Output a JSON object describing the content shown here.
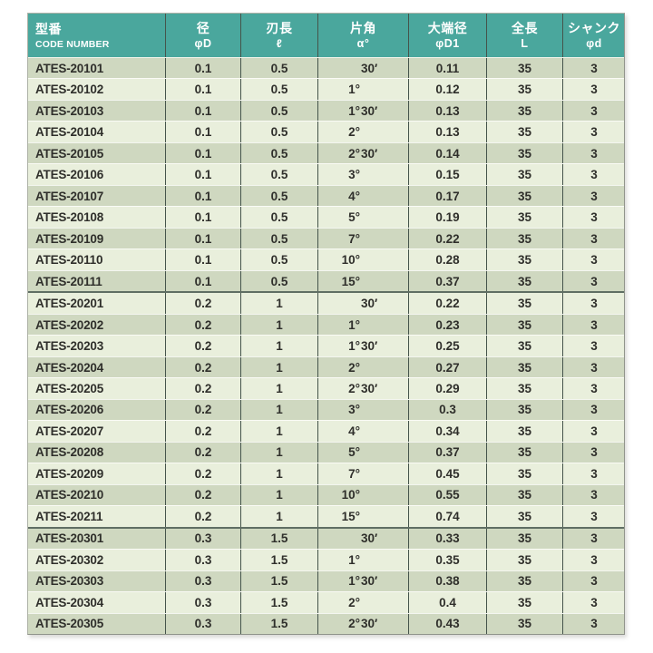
{
  "page": {
    "background": "#ffffff"
  },
  "table": {
    "colors": {
      "header_bg": "#4AA79D",
      "header_text": "#FFFFFF",
      "row_dark": "#CFD8C0",
      "row_light": "#E9EFDC",
      "text": "#2F2F2B",
      "column_rule": "#45544B",
      "group_rule": "#5F6E63"
    },
    "columns": [
      {
        "id": "code",
        "title": "型番",
        "sub": "CODE NUMBER",
        "sub_style": "en",
        "align": "left"
      },
      {
        "id": "d",
        "title": "径",
        "sub": "φD",
        "sub_style": "sym",
        "align": "center"
      },
      {
        "id": "l",
        "title": "刃長",
        "sub": "ℓ",
        "sub_style": "sym",
        "align": "center"
      },
      {
        "id": "angle",
        "title": "片角",
        "sub": "α°",
        "sub_style": "sym",
        "align": "center"
      },
      {
        "id": "d1",
        "title": "大端径",
        "sub": "φD1",
        "sub_style": "sym",
        "align": "center"
      },
      {
        "id": "len",
        "title": "全長",
        "sub": "L",
        "sub_style": "sym",
        "align": "center"
      },
      {
        "id": "shank",
        "title": "シャンク",
        "sub": "φd",
        "sub_style": "sym",
        "align": "center"
      }
    ],
    "rows": [
      {
        "code": "ATES-20101",
        "d": "0.1",
        "l": "0.5",
        "deg": "",
        "min": "30′",
        "d1": "0.11",
        "len": "35",
        "shank": "3",
        "group_start": false
      },
      {
        "code": "ATES-20102",
        "d": "0.1",
        "l": "0.5",
        "deg": "1°",
        "min": "",
        "d1": "0.12",
        "len": "35",
        "shank": "3",
        "group_start": false
      },
      {
        "code": "ATES-20103",
        "d": "0.1",
        "l": "0.5",
        "deg": "1°",
        "min": "30′",
        "d1": "0.13",
        "len": "35",
        "shank": "3",
        "group_start": false
      },
      {
        "code": "ATES-20104",
        "d": "0.1",
        "l": "0.5",
        "deg": "2°",
        "min": "",
        "d1": "0.13",
        "len": "35",
        "shank": "3",
        "group_start": false
      },
      {
        "code": "ATES-20105",
        "d": "0.1",
        "l": "0.5",
        "deg": "2°",
        "min": "30′",
        "d1": "0.14",
        "len": "35",
        "shank": "3",
        "group_start": false
      },
      {
        "code": "ATES-20106",
        "d": "0.1",
        "l": "0.5",
        "deg": "3°",
        "min": "",
        "d1": "0.15",
        "len": "35",
        "shank": "3",
        "group_start": false
      },
      {
        "code": "ATES-20107",
        "d": "0.1",
        "l": "0.5",
        "deg": "4°",
        "min": "",
        "d1": "0.17",
        "len": "35",
        "shank": "3",
        "group_start": false
      },
      {
        "code": "ATES-20108",
        "d": "0.1",
        "l": "0.5",
        "deg": "5°",
        "min": "",
        "d1": "0.19",
        "len": "35",
        "shank": "3",
        "group_start": false
      },
      {
        "code": "ATES-20109",
        "d": "0.1",
        "l": "0.5",
        "deg": "7°",
        "min": "",
        "d1": "0.22",
        "len": "35",
        "shank": "3",
        "group_start": false
      },
      {
        "code": "ATES-20110",
        "d": "0.1",
        "l": "0.5",
        "deg": "10°",
        "min": "",
        "d1": "0.28",
        "len": "35",
        "shank": "3",
        "group_start": false
      },
      {
        "code": "ATES-20111",
        "d": "0.1",
        "l": "0.5",
        "deg": "15°",
        "min": "",
        "d1": "0.37",
        "len": "35",
        "shank": "3",
        "group_start": false
      },
      {
        "code": "ATES-20201",
        "d": "0.2",
        "l": "1",
        "deg": "",
        "min": "30′",
        "d1": "0.22",
        "len": "35",
        "shank": "3",
        "group_start": true
      },
      {
        "code": "ATES-20202",
        "d": "0.2",
        "l": "1",
        "deg": "1°",
        "min": "",
        "d1": "0.23",
        "len": "35",
        "shank": "3",
        "group_start": false
      },
      {
        "code": "ATES-20203",
        "d": "0.2",
        "l": "1",
        "deg": "1°",
        "min": "30′",
        "d1": "0.25",
        "len": "35",
        "shank": "3",
        "group_start": false
      },
      {
        "code": "ATES-20204",
        "d": "0.2",
        "l": "1",
        "deg": "2°",
        "min": "",
        "d1": "0.27",
        "len": "35",
        "shank": "3",
        "group_start": false
      },
      {
        "code": "ATES-20205",
        "d": "0.2",
        "l": "1",
        "deg": "2°",
        "min": "30′",
        "d1": "0.29",
        "len": "35",
        "shank": "3",
        "group_start": false
      },
      {
        "code": "ATES-20206",
        "d": "0.2",
        "l": "1",
        "deg": "3°",
        "min": "",
        "d1": "0.3",
        "len": "35",
        "shank": "3",
        "group_start": false
      },
      {
        "code": "ATES-20207",
        "d": "0.2",
        "l": "1",
        "deg": "4°",
        "min": "",
        "d1": "0.34",
        "len": "35",
        "shank": "3",
        "group_start": false
      },
      {
        "code": "ATES-20208",
        "d": "0.2",
        "l": "1",
        "deg": "5°",
        "min": "",
        "d1": "0.37",
        "len": "35",
        "shank": "3",
        "group_start": false
      },
      {
        "code": "ATES-20209",
        "d": "0.2",
        "l": "1",
        "deg": "7°",
        "min": "",
        "d1": "0.45",
        "len": "35",
        "shank": "3",
        "group_start": false
      },
      {
        "code": "ATES-20210",
        "d": "0.2",
        "l": "1",
        "deg": "10°",
        "min": "",
        "d1": "0.55",
        "len": "35",
        "shank": "3",
        "group_start": false
      },
      {
        "code": "ATES-20211",
        "d": "0.2",
        "l": "1",
        "deg": "15°",
        "min": "",
        "d1": "0.74",
        "len": "35",
        "shank": "3",
        "group_start": false
      },
      {
        "code": "ATES-20301",
        "d": "0.3",
        "l": "1.5",
        "deg": "",
        "min": "30′",
        "d1": "0.33",
        "len": "35",
        "shank": "3",
        "group_start": true
      },
      {
        "code": "ATES-20302",
        "d": "0.3",
        "l": "1.5",
        "deg": "1°",
        "min": "",
        "d1": "0.35",
        "len": "35",
        "shank": "3",
        "group_start": false
      },
      {
        "code": "ATES-20303",
        "d": "0.3",
        "l": "1.5",
        "deg": "1°",
        "min": "30′",
        "d1": "0.38",
        "len": "35",
        "shank": "3",
        "group_start": false
      },
      {
        "code": "ATES-20304",
        "d": "0.3",
        "l": "1.5",
        "deg": "2°",
        "min": "",
        "d1": "0.4",
        "len": "35",
        "shank": "3",
        "group_start": false
      },
      {
        "code": "ATES-20305",
        "d": "0.3",
        "l": "1.5",
        "deg": "2°",
        "min": "30′",
        "d1": "0.43",
        "len": "35",
        "shank": "3",
        "group_start": false
      }
    ]
  }
}
